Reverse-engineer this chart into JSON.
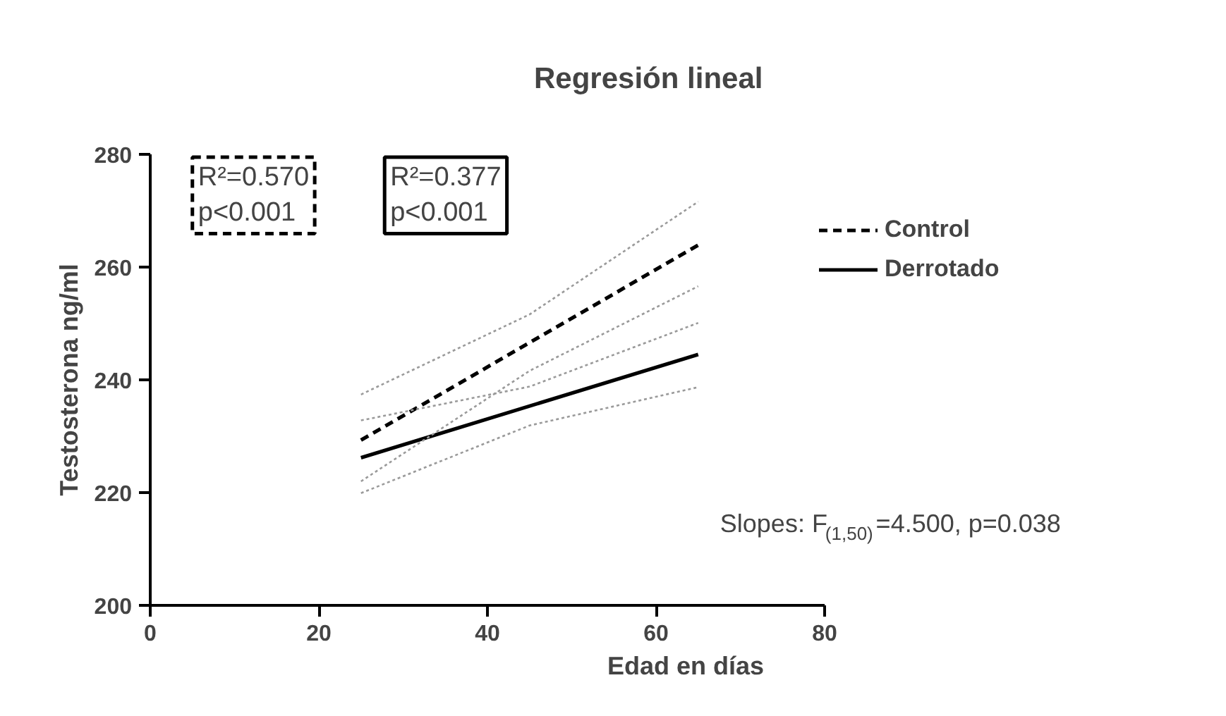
{
  "chart_data": {
    "type": "line",
    "title": "Regresión lineal",
    "xlabel": "Edad en días",
    "ylabel": "Testosterona ng/ml",
    "xlim": [
      0,
      80
    ],
    "xticks": [
      0,
      20,
      40,
      60,
      80
    ],
    "ylim": [
      200,
      280
    ],
    "yticks": [
      200,
      220,
      240,
      260,
      280
    ],
    "series": [
      {
        "name": "Control",
        "color": "#000000",
        "line_style": "dashed",
        "x": [
          25,
          65
        ],
        "values": [
          229.3,
          263.9
        ]
      },
      {
        "name": "Derrotado",
        "color": "#000000",
        "line_style": "solid",
        "x": [
          25,
          65
        ],
        "values": [
          226.2,
          244.5
        ]
      },
      {
        "color": "#9a9a9a",
        "line_style": "dotted",
        "x": [
          25,
          45,
          65
        ],
        "values": [
          237.4,
          251.6,
          271.6
        ]
      },
      {
        "color": "#9a9a9a",
        "line_style": "dotted",
        "x": [
          25,
          45,
          65
        ],
        "values": [
          222.0,
          241.6,
          256.6
        ]
      },
      {
        "color": "#9a9a9a",
        "line_style": "dotted",
        "x": [
          25,
          45,
          65
        ],
        "values": [
          232.8,
          238.8,
          250.1
        ]
      },
      {
        "color": "#9a9a9a",
        "line_style": "dotted",
        "x": [
          25,
          45,
          65
        ],
        "values": [
          219.9,
          231.9,
          238.7
        ]
      }
    ],
    "annotations": [
      "R²=0.570\np<0.001",
      "R²=0.377\np<0.001",
      "Slopes: F$_{(1,50)}$=4.500, p=0.038"
    ],
    "legend": "right",
    "grid": false,
    "marker": "none"
  }
}
